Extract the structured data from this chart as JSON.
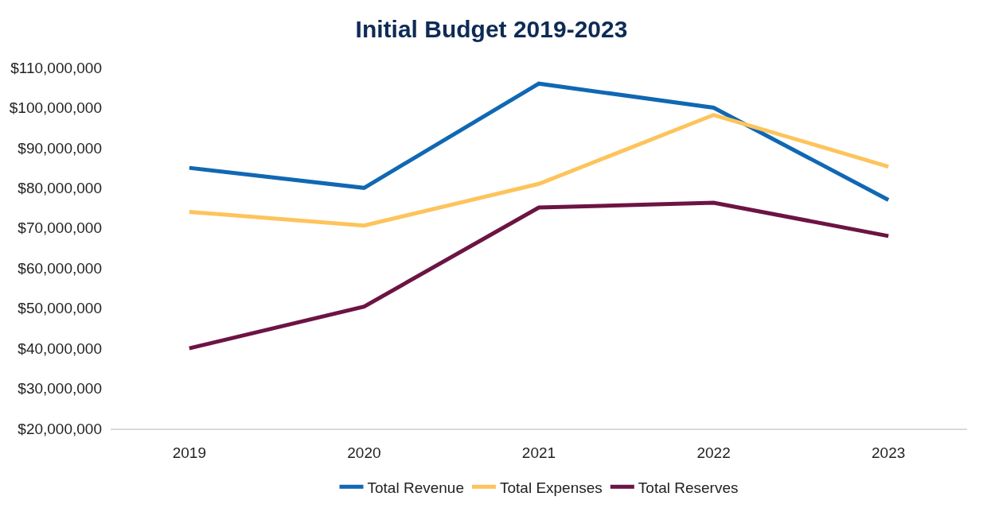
{
  "chart_data": {
    "type": "line",
    "title": "Initial Budget 2019-2023",
    "categories": [
      "2019",
      "2020",
      "2021",
      "2022",
      "2023"
    ],
    "series": [
      {
        "name": "Total Revenue",
        "color": "#1068b3",
        "values": [
          85000000,
          80000000,
          106000000,
          100000000,
          77000000
        ]
      },
      {
        "name": "Total Expenses",
        "color": "#fdc45c",
        "values": [
          74000000,
          70600000,
          81000000,
          98200000,
          85300000
        ]
      },
      {
        "name": "Total Reserves",
        "color": "#6c1443",
        "values": [
          40000000,
          50400000,
          75100000,
          76300000,
          68000000
        ]
      }
    ],
    "ylim": [
      20000000,
      110000000
    ],
    "yticks": [
      {
        "value": 20000000,
        "label": "$20,000,000"
      },
      {
        "value": 30000000,
        "label": "$30,000,000"
      },
      {
        "value": 40000000,
        "label": "$40,000,000"
      },
      {
        "value": 50000000,
        "label": "$50,000,000"
      },
      {
        "value": 60000000,
        "label": "$60,000,000"
      },
      {
        "value": 70000000,
        "label": "$70,000,000"
      },
      {
        "value": 80000000,
        "label": "$80,000,000"
      },
      {
        "value": 90000000,
        "label": "$90,000,000"
      },
      {
        "value": 100000000,
        "label": "$100,000,000"
      },
      {
        "value": 110000000,
        "label": "$110,000,000"
      }
    ],
    "grid": false,
    "legend": "bottom",
    "marker": "none",
    "line_style": "solid"
  }
}
